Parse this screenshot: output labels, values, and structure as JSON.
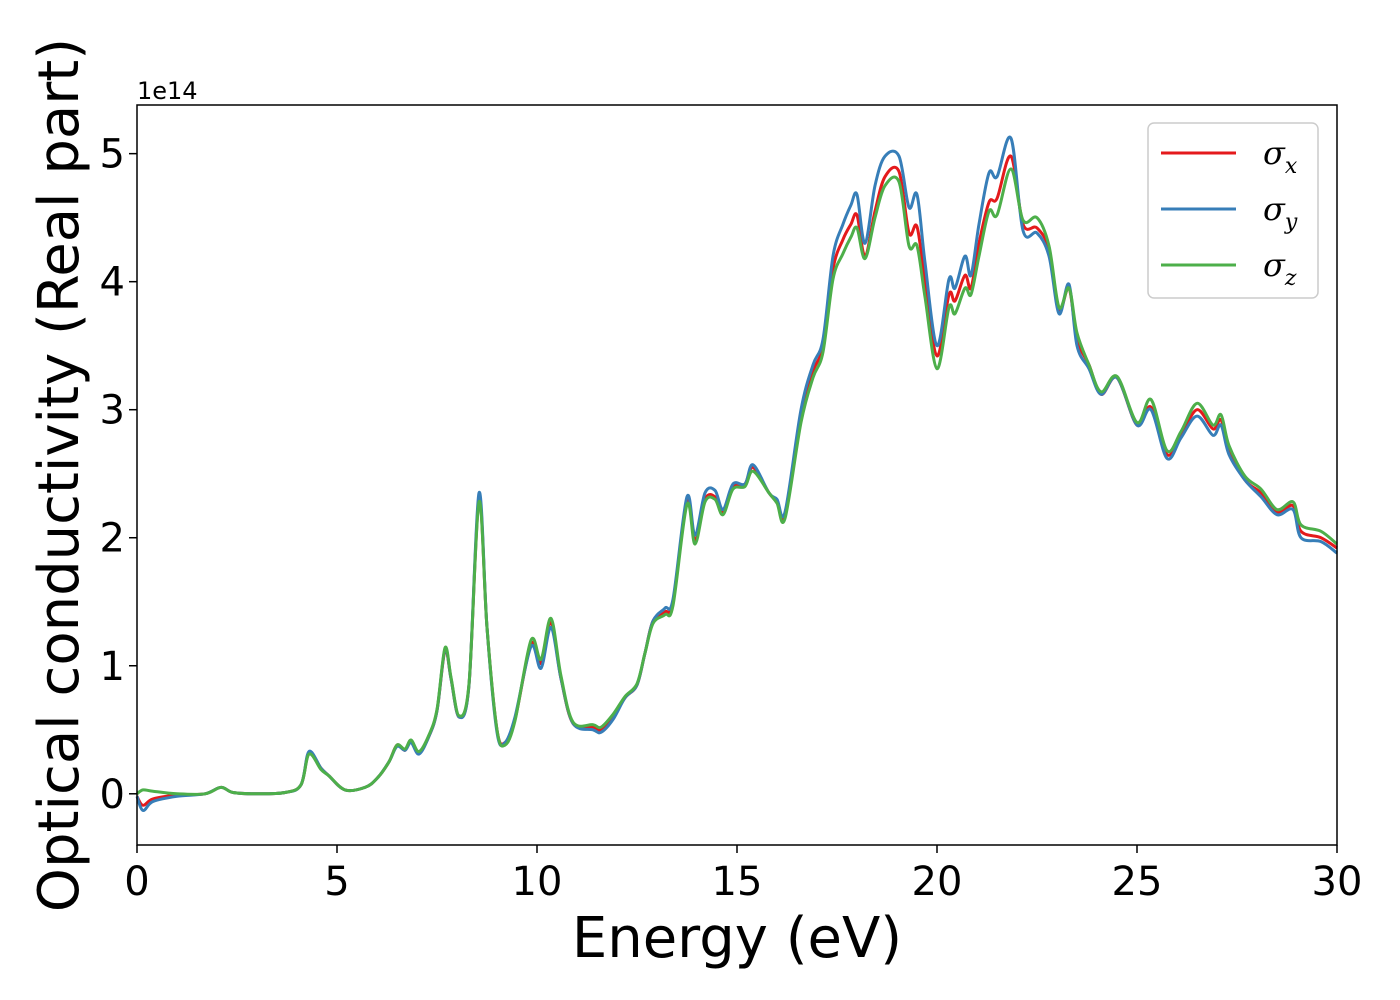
{
  "chart_data": {
    "type": "line",
    "xlabel": "Energy (eV)",
    "ylabel": "Optical conductivity (Real part)",
    "y_offset_label": "1e14",
    "xlim": [
      0,
      30
    ],
    "ylim": [
      -0.4,
      5.38
    ],
    "x_ticks": [
      0,
      5,
      10,
      15,
      20,
      25,
      30
    ],
    "y_ticks": [
      0,
      1,
      2,
      3,
      4,
      5
    ],
    "grid": false,
    "legend_position": "top-right",
    "series": [
      {
        "name": "σx",
        "symbol": "σ",
        "subscript": "x",
        "color": "#e41a1c",
        "points": [
          [
            0,
            -0.02
          ],
          [
            0.15,
            -0.09
          ],
          [
            0.4,
            -0.04
          ],
          [
            1,
            -0.01
          ],
          [
            1.7,
            0.0
          ],
          [
            2.1,
            0.05
          ],
          [
            2.4,
            0.01
          ],
          [
            3,
            0.0
          ],
          [
            3.7,
            0.01
          ],
          [
            4.1,
            0.07
          ],
          [
            4.3,
            0.32
          ],
          [
            4.6,
            0.2
          ],
          [
            4.8,
            0.14
          ],
          [
            5.2,
            0.03
          ],
          [
            5.7,
            0.05
          ],
          [
            6,
            0.12
          ],
          [
            6.3,
            0.25
          ],
          [
            6.5,
            0.38
          ],
          [
            6.7,
            0.34
          ],
          [
            6.85,
            0.41
          ],
          [
            7.05,
            0.32
          ],
          [
            7.3,
            0.45
          ],
          [
            7.5,
            0.65
          ],
          [
            7.7,
            1.12
          ],
          [
            7.85,
            0.9
          ],
          [
            8.05,
            0.6
          ],
          [
            8.3,
            0.85
          ],
          [
            8.55,
            2.3
          ],
          [
            8.75,
            1.3
          ],
          [
            9.0,
            0.5
          ],
          [
            9.2,
            0.4
          ],
          [
            9.45,
            0.58
          ],
          [
            9.85,
            1.17
          ],
          [
            10.1,
            1.02
          ],
          [
            10.35,
            1.34
          ],
          [
            10.6,
            0.9
          ],
          [
            10.9,
            0.55
          ],
          [
            11.4,
            0.52
          ],
          [
            11.6,
            0.5
          ],
          [
            11.9,
            0.6
          ],
          [
            12.2,
            0.75
          ],
          [
            12.5,
            0.85
          ],
          [
            12.7,
            1.1
          ],
          [
            12.9,
            1.35
          ],
          [
            13.2,
            1.42
          ],
          [
            13.4,
            1.5
          ],
          [
            13.75,
            2.28
          ],
          [
            13.95,
            1.98
          ],
          [
            14.2,
            2.3
          ],
          [
            14.45,
            2.32
          ],
          [
            14.65,
            2.2
          ],
          [
            14.9,
            2.4
          ],
          [
            15.2,
            2.42
          ],
          [
            15.4,
            2.55
          ],
          [
            15.8,
            2.35
          ],
          [
            16,
            2.28
          ],
          [
            16.2,
            2.18
          ],
          [
            16.6,
            2.95
          ],
          [
            16.9,
            3.3
          ],
          [
            17.15,
            3.5
          ],
          [
            17.4,
            4.1
          ],
          [
            17.65,
            4.33
          ],
          [
            17.85,
            4.45
          ],
          [
            18.0,
            4.52
          ],
          [
            18.2,
            4.2
          ],
          [
            18.45,
            4.55
          ],
          [
            18.7,
            4.82
          ],
          [
            19.05,
            4.86
          ],
          [
            19.3,
            4.38
          ],
          [
            19.5,
            4.43
          ],
          [
            19.7,
            4.0
          ],
          [
            20.0,
            3.42
          ],
          [
            20.3,
            3.9
          ],
          [
            20.45,
            3.85
          ],
          [
            20.7,
            4.05
          ],
          [
            20.85,
            3.95
          ],
          [
            21.05,
            4.3
          ],
          [
            21.3,
            4.62
          ],
          [
            21.5,
            4.65
          ],
          [
            21.85,
            4.98
          ],
          [
            22.15,
            4.45
          ],
          [
            22.5,
            4.42
          ],
          [
            22.8,
            4.25
          ],
          [
            23.05,
            3.78
          ],
          [
            23.3,
            3.95
          ],
          [
            23.5,
            3.55
          ],
          [
            23.8,
            3.35
          ],
          [
            24.1,
            3.12
          ],
          [
            24.5,
            3.25
          ],
          [
            25.0,
            2.88
          ],
          [
            25.35,
            3.02
          ],
          [
            25.75,
            2.65
          ],
          [
            26.1,
            2.8
          ],
          [
            26.5,
            3.0
          ],
          [
            26.9,
            2.85
          ],
          [
            27.1,
            2.92
          ],
          [
            27.3,
            2.68
          ],
          [
            27.7,
            2.45
          ],
          [
            28.1,
            2.35
          ],
          [
            28.5,
            2.2
          ],
          [
            28.9,
            2.25
          ],
          [
            29.1,
            2.05
          ],
          [
            29.6,
            2.0
          ],
          [
            30,
            1.92
          ]
        ]
      },
      {
        "name": "σy",
        "symbol": "σ",
        "subscript": "y",
        "color": "#377eb8",
        "points": [
          [
            0,
            -0.02
          ],
          [
            0.15,
            -0.13
          ],
          [
            0.4,
            -0.06
          ],
          [
            1,
            -0.02
          ],
          [
            1.7,
            0.0
          ],
          [
            2.1,
            0.05
          ],
          [
            2.4,
            0.01
          ],
          [
            3,
            0.0
          ],
          [
            3.7,
            0.01
          ],
          [
            4.1,
            0.07
          ],
          [
            4.3,
            0.33
          ],
          [
            4.6,
            0.2
          ],
          [
            4.8,
            0.14
          ],
          [
            5.2,
            0.03
          ],
          [
            5.7,
            0.05
          ],
          [
            6,
            0.12
          ],
          [
            6.3,
            0.25
          ],
          [
            6.5,
            0.37
          ],
          [
            6.7,
            0.34
          ],
          [
            6.85,
            0.4
          ],
          [
            7.05,
            0.31
          ],
          [
            7.3,
            0.45
          ],
          [
            7.5,
            0.65
          ],
          [
            7.7,
            1.13
          ],
          [
            7.85,
            0.9
          ],
          [
            8.05,
            0.6
          ],
          [
            8.3,
            0.85
          ],
          [
            8.55,
            2.35
          ],
          [
            8.75,
            1.3
          ],
          [
            9.0,
            0.48
          ],
          [
            9.2,
            0.4
          ],
          [
            9.45,
            0.6
          ],
          [
            9.85,
            1.15
          ],
          [
            10.1,
            0.98
          ],
          [
            10.35,
            1.3
          ],
          [
            10.6,
            0.9
          ],
          [
            10.9,
            0.55
          ],
          [
            11.4,
            0.5
          ],
          [
            11.6,
            0.48
          ],
          [
            11.9,
            0.58
          ],
          [
            12.2,
            0.75
          ],
          [
            12.5,
            0.85
          ],
          [
            12.7,
            1.1
          ],
          [
            12.9,
            1.35
          ],
          [
            13.2,
            1.45
          ],
          [
            13.4,
            1.52
          ],
          [
            13.75,
            2.32
          ],
          [
            13.95,
            2.02
          ],
          [
            14.2,
            2.35
          ],
          [
            14.45,
            2.37
          ],
          [
            14.65,
            2.22
          ],
          [
            14.9,
            2.42
          ],
          [
            15.2,
            2.42
          ],
          [
            15.4,
            2.57
          ],
          [
            15.8,
            2.35
          ],
          [
            16,
            2.3
          ],
          [
            16.2,
            2.2
          ],
          [
            16.6,
            3.0
          ],
          [
            16.9,
            3.35
          ],
          [
            17.15,
            3.55
          ],
          [
            17.4,
            4.2
          ],
          [
            17.65,
            4.45
          ],
          [
            17.85,
            4.6
          ],
          [
            18.0,
            4.68
          ],
          [
            18.2,
            4.3
          ],
          [
            18.45,
            4.75
          ],
          [
            18.7,
            4.98
          ],
          [
            19.05,
            4.98
          ],
          [
            19.3,
            4.58
          ],
          [
            19.5,
            4.68
          ],
          [
            19.7,
            4.15
          ],
          [
            20.0,
            3.5
          ],
          [
            20.3,
            4.02
          ],
          [
            20.45,
            3.95
          ],
          [
            20.7,
            4.2
          ],
          [
            20.85,
            4.05
          ],
          [
            21.05,
            4.45
          ],
          [
            21.3,
            4.85
          ],
          [
            21.5,
            4.82
          ],
          [
            21.85,
            5.12
          ],
          [
            22.15,
            4.4
          ],
          [
            22.5,
            4.38
          ],
          [
            22.8,
            4.2
          ],
          [
            23.05,
            3.75
          ],
          [
            23.3,
            3.98
          ],
          [
            23.5,
            3.5
          ],
          [
            23.8,
            3.32
          ],
          [
            24.1,
            3.12
          ],
          [
            24.5,
            3.25
          ],
          [
            25.0,
            2.88
          ],
          [
            25.35,
            3.0
          ],
          [
            25.75,
            2.62
          ],
          [
            26.1,
            2.78
          ],
          [
            26.5,
            2.95
          ],
          [
            26.9,
            2.8
          ],
          [
            27.1,
            2.88
          ],
          [
            27.3,
            2.65
          ],
          [
            27.7,
            2.45
          ],
          [
            28.1,
            2.32
          ],
          [
            28.5,
            2.18
          ],
          [
            28.9,
            2.22
          ],
          [
            29.1,
            2.0
          ],
          [
            29.6,
            1.97
          ],
          [
            30,
            1.88
          ]
        ]
      },
      {
        "name": "σz",
        "symbol": "σ",
        "subscript": "z",
        "color": "#4daf4a",
        "points": [
          [
            0,
            0.0
          ],
          [
            0.15,
            0.03
          ],
          [
            0.4,
            0.02
          ],
          [
            1,
            0.0
          ],
          [
            1.7,
            0.0
          ],
          [
            2.1,
            0.05
          ],
          [
            2.4,
            0.01
          ],
          [
            3,
            0.0
          ],
          [
            3.7,
            0.01
          ],
          [
            4.1,
            0.07
          ],
          [
            4.3,
            0.31
          ],
          [
            4.6,
            0.19
          ],
          [
            4.8,
            0.14
          ],
          [
            5.2,
            0.03
          ],
          [
            5.7,
            0.05
          ],
          [
            6,
            0.12
          ],
          [
            6.3,
            0.25
          ],
          [
            6.5,
            0.38
          ],
          [
            6.7,
            0.35
          ],
          [
            6.85,
            0.42
          ],
          [
            7.05,
            0.33
          ],
          [
            7.3,
            0.46
          ],
          [
            7.5,
            0.66
          ],
          [
            7.7,
            1.14
          ],
          [
            7.85,
            0.91
          ],
          [
            8.05,
            0.61
          ],
          [
            8.3,
            0.86
          ],
          [
            8.55,
            2.28
          ],
          [
            8.75,
            1.3
          ],
          [
            9.0,
            0.5
          ],
          [
            9.2,
            0.38
          ],
          [
            9.45,
            0.57
          ],
          [
            9.85,
            1.2
          ],
          [
            10.1,
            1.05
          ],
          [
            10.35,
            1.37
          ],
          [
            10.6,
            0.92
          ],
          [
            10.9,
            0.56
          ],
          [
            11.4,
            0.54
          ],
          [
            11.6,
            0.52
          ],
          [
            11.9,
            0.62
          ],
          [
            12.2,
            0.76
          ],
          [
            12.5,
            0.86
          ],
          [
            12.7,
            1.1
          ],
          [
            12.9,
            1.33
          ],
          [
            13.2,
            1.4
          ],
          [
            13.4,
            1.47
          ],
          [
            13.75,
            2.26
          ],
          [
            13.95,
            1.95
          ],
          [
            14.2,
            2.28
          ],
          [
            14.45,
            2.3
          ],
          [
            14.65,
            2.18
          ],
          [
            14.9,
            2.38
          ],
          [
            15.2,
            2.4
          ],
          [
            15.4,
            2.52
          ],
          [
            15.8,
            2.35
          ],
          [
            16,
            2.27
          ],
          [
            16.2,
            2.15
          ],
          [
            16.6,
            2.9
          ],
          [
            16.9,
            3.25
          ],
          [
            17.15,
            3.45
          ],
          [
            17.4,
            4.02
          ],
          [
            17.65,
            4.22
          ],
          [
            17.85,
            4.35
          ],
          [
            18.0,
            4.42
          ],
          [
            18.2,
            4.18
          ],
          [
            18.45,
            4.5
          ],
          [
            18.7,
            4.75
          ],
          [
            19.05,
            4.78
          ],
          [
            19.3,
            4.28
          ],
          [
            19.5,
            4.28
          ],
          [
            19.7,
            3.88
          ],
          [
            20.0,
            3.32
          ],
          [
            20.3,
            3.8
          ],
          [
            20.45,
            3.75
          ],
          [
            20.7,
            3.95
          ],
          [
            20.85,
            3.9
          ],
          [
            21.05,
            4.2
          ],
          [
            21.3,
            4.55
          ],
          [
            21.5,
            4.52
          ],
          [
            21.85,
            4.88
          ],
          [
            22.15,
            4.48
          ],
          [
            22.5,
            4.5
          ],
          [
            22.8,
            4.28
          ],
          [
            23.05,
            3.8
          ],
          [
            23.3,
            3.95
          ],
          [
            23.5,
            3.6
          ],
          [
            23.8,
            3.35
          ],
          [
            24.1,
            3.14
          ],
          [
            24.5,
            3.26
          ],
          [
            25.0,
            2.9
          ],
          [
            25.35,
            3.08
          ],
          [
            25.75,
            2.68
          ],
          [
            26.1,
            2.83
          ],
          [
            26.5,
            3.05
          ],
          [
            26.9,
            2.88
          ],
          [
            27.1,
            2.96
          ],
          [
            27.3,
            2.72
          ],
          [
            27.7,
            2.48
          ],
          [
            28.1,
            2.38
          ],
          [
            28.5,
            2.22
          ],
          [
            28.9,
            2.28
          ],
          [
            29.1,
            2.1
          ],
          [
            29.6,
            2.05
          ],
          [
            30,
            1.95
          ]
        ]
      }
    ]
  }
}
